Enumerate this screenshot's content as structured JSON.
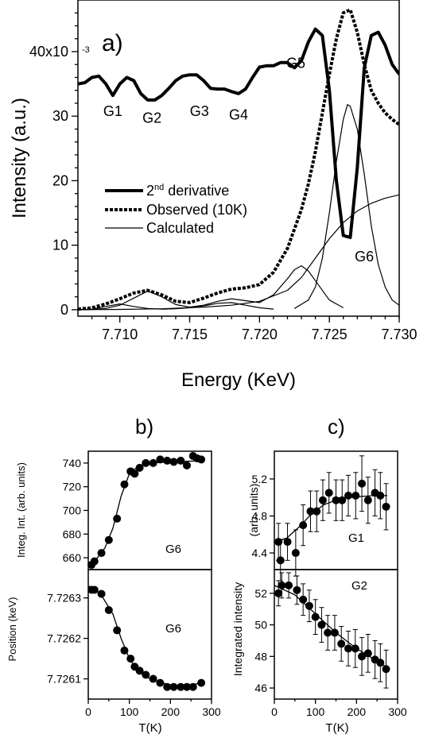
{
  "chart_data": [
    {
      "id": "a",
      "type": "line",
      "panel_label": "a)",
      "xlabel": "Energy (KeV)",
      "ylabel": "Intensity (a.u.)",
      "xlim": [
        7.707,
        7.73
      ],
      "ylim": [
        -1,
        48
      ],
      "x_ticks": [
        7.71,
        7.715,
        7.72,
        7.725,
        7.73
      ],
      "x_tick_labels": [
        "7.710",
        "7.715",
        "7.720",
        "7.725",
        "7.730"
      ],
      "y_ticks": [
        0,
        10,
        20,
        30,
        40
      ],
      "y_tick_labels": [
        "0",
        "10",
        "20",
        "30",
        "40x10"
      ],
      "y_exponent": "-3",
      "legend": {
        "placement": "center-left",
        "entries": [
          {
            "label_main": "2",
            "label_sup": "nd",
            "label_rest": " derivative",
            "style": "thick"
          },
          {
            "label_main": "Observed (10K)",
            "style": "dotted"
          },
          {
            "label_main": "Calculated",
            "style": "thin"
          }
        ]
      },
      "annotations": [
        {
          "text": "G1",
          "x": 7.7095,
          "y": 30
        },
        {
          "text": "G2",
          "x": 7.7123,
          "y": 29
        },
        {
          "text": "G3",
          "x": 7.7157,
          "y": 30
        },
        {
          "text": "G4",
          "x": 7.7185,
          "y": 29.5
        },
        {
          "text": "G5",
          "x": 7.7226,
          "y": 37.5
        },
        {
          "text": "G6",
          "x": 7.7275,
          "y": 7.5
        }
      ],
      "series": [
        {
          "style": "thick",
          "x": [
            7.707,
            7.7075,
            7.708,
            7.7085,
            7.709,
            7.7095,
            7.71,
            7.7105,
            7.711,
            7.7115,
            7.712,
            7.7125,
            7.713,
            7.7135,
            7.714,
            7.7145,
            7.715,
            7.7155,
            7.716,
            7.7165,
            7.717,
            7.7175,
            7.718,
            7.7185,
            7.719,
            7.7195,
            7.72,
            7.7205,
            7.721,
            7.7215,
            7.722,
            7.7225,
            7.723,
            7.7235,
            7.724,
            7.7245,
            7.725,
            7.7255,
            7.726,
            7.7265,
            7.727,
            7.7275,
            7.728,
            7.7285,
            7.729,
            7.7295,
            7.73
          ],
          "y": [
            35,
            35.2,
            36,
            36.2,
            35,
            33.2,
            35,
            36,
            35.5,
            33.5,
            32.5,
            32.5,
            33.2,
            34.3,
            35.5,
            36.2,
            36.4,
            36.4,
            35.5,
            34.3,
            34.2,
            34.2,
            33.8,
            33.5,
            34.2,
            36,
            37.6,
            37.8,
            37.8,
            38.3,
            38.3,
            37.5,
            38.6,
            41.5,
            43.5,
            42.5,
            34,
            20,
            11.5,
            11.2,
            22,
            37.5,
            42.5,
            43,
            41,
            38,
            36.5
          ]
        },
        {
          "style": "dotted",
          "x": [
            7.707,
            7.708,
            7.709,
            7.71,
            7.711,
            7.712,
            7.713,
            7.714,
            7.715,
            7.716,
            7.717,
            7.718,
            7.719,
            7.72,
            7.721,
            7.722,
            7.723,
            7.7235,
            7.724,
            7.7245,
            7.725,
            7.7255,
            7.726,
            7.7265,
            7.727,
            7.7275,
            7.728,
            7.7285,
            7.729,
            7.7295,
            7.73
          ],
          "y": [
            0.1,
            0.3,
            0.9,
            1.7,
            2.6,
            3.0,
            2.3,
            1.3,
            1.1,
            1.8,
            2.6,
            3.2,
            3.4,
            3.9,
            5.8,
            9.5,
            15.5,
            19.5,
            24.5,
            30.5,
            36.5,
            42,
            46,
            46.5,
            43,
            38,
            34,
            32,
            30.5,
            29.5,
            28.7
          ]
        },
        {
          "style": "thin",
          "x": [
            7.707,
            7.708,
            7.709,
            7.71,
            7.711,
            7.712,
            7.713,
            7.714,
            7.715,
            7.716,
            7.717,
            7.718,
            7.719,
            7.72,
            7.721,
            7.722,
            7.7225,
            7.723,
            7.7235,
            7.724,
            7.725,
            7.726
          ],
          "y": [
            0,
            0.05,
            0.2,
            0.7,
            1.8,
            2.9,
            2.0,
            0.8,
            0.4,
            0.7,
            1.3,
            1.7,
            1.4,
            1.1,
            2.3,
            4.8,
            6.2,
            6.8,
            6.0,
            4.5,
            1.5,
            0.3
          ]
        },
        {
          "style": "thin",
          "x": [
            7.707,
            7.708,
            7.709,
            7.71,
            7.711,
            7.712,
            7.713,
            7.714,
            7.715,
            7.716,
            7.717,
            7.718,
            7.719,
            7.72,
            7.721
          ],
          "y": [
            0,
            0.1,
            0.5,
            0.9,
            0.5,
            0.2,
            0.1,
            0.15,
            0.3,
            0.6,
            1.0,
            1.1,
            0.7,
            0.3,
            0.1
          ]
        },
        {
          "style": "thin",
          "x": [
            7.707,
            7.71,
            7.713,
            7.716,
            7.718,
            7.72,
            7.722,
            7.723,
            7.724,
            7.725,
            7.726,
            7.727,
            7.728,
            7.729,
            7.73
          ],
          "y": [
            0,
            0.05,
            0.15,
            0.4,
            0.7,
            1.3,
            3,
            5,
            8,
            11,
            13.5,
            15.3,
            16.5,
            17.3,
            17.8
          ]
        },
        {
          "style": "thin",
          "x": [
            7.7225,
            7.7235,
            7.724,
            7.7245,
            7.725,
            7.7255,
            7.726,
            7.7263,
            7.7265,
            7.727,
            7.7275,
            7.728,
            7.7285,
            7.729,
            7.7295,
            7.73
          ],
          "y": [
            0.2,
            1.5,
            3.5,
            8,
            15,
            23,
            29.5,
            31.8,
            31.5,
            28,
            21,
            13,
            7,
            3.5,
            1.5,
            0.7
          ]
        }
      ]
    },
    {
      "id": "b-top",
      "type": "scatter",
      "panel_label": "b)",
      "ylabel": "Integ. Int. (arb. units)",
      "annotation": "G6",
      "xlim": [
        0,
        300
      ],
      "ylim": [
        650,
        750
      ],
      "y_ticks": [
        660,
        680,
        700,
        720,
        740
      ],
      "y_tick_labels": [
        "660",
        "680",
        "700",
        "720",
        "740"
      ],
      "points_x": [
        8,
        15,
        32,
        50,
        70,
        88,
        103,
        113,
        125,
        140,
        158,
        175,
        192,
        208,
        225,
        240,
        255,
        265,
        275
      ],
      "points_y": [
        654,
        657,
        664,
        675,
        693,
        722,
        733,
        731,
        736,
        740,
        740,
        743,
        742,
        741,
        742,
        738,
        746,
        744,
        743
      ],
      "fit_x": [
        0,
        20,
        40,
        60,
        80,
        100,
        120,
        150,
        200,
        280
      ],
      "fit_y": [
        654,
        659,
        668,
        685,
        712,
        731,
        737,
        740,
        741,
        742
      ]
    },
    {
      "id": "b-bottom",
      "type": "scatter",
      "ylabel": "Position (keV)",
      "xlabel": "T(K)",
      "annotation": "G6",
      "xlim": [
        0,
        300
      ],
      "ylim": [
        7.72605,
        7.72637
      ],
      "y_ticks": [
        7.7261,
        7.7262,
        7.7263
      ],
      "y_tick_labels": [
        "7.7261",
        "7.7262",
        "7.7263"
      ],
      "x_ticks": [
        0,
        100,
        200,
        300
      ],
      "x_tick_labels": [
        "0",
        "100",
        "200",
        "300"
      ],
      "points_x": [
        8,
        15,
        32,
        50,
        70,
        88,
        103,
        113,
        125,
        140,
        158,
        175,
        192,
        208,
        225,
        240,
        255,
        275
      ],
      "points_y": [
        7.72632,
        7.72632,
        7.72631,
        7.72627,
        7.72622,
        7.72617,
        7.72615,
        7.72613,
        7.72612,
        7.72611,
        7.7261,
        7.72609,
        7.72608,
        7.72608,
        7.72608,
        7.72608,
        7.72608,
        7.72609
      ],
      "fit_x": [
        0,
        30,
        60,
        80,
        100,
        120,
        150,
        180,
        220,
        280
      ],
      "fit_y": [
        7.72633,
        7.72631,
        7.72626,
        7.7262,
        7.72615,
        7.72612,
        7.7261,
        7.72609,
        7.72608,
        7.72609
      ]
    },
    {
      "id": "c-top",
      "type": "scatter",
      "panel_label": "c)",
      "ylabel": "(arb. units)",
      "annotation": "G1",
      "xlim": [
        0,
        300
      ],
      "ylim": [
        4.22,
        5.5
      ],
      "y_ticks": [
        4.4,
        4.8,
        5.2
      ],
      "y_tick_labels": [
        "4.4",
        "4.8",
        "5.2"
      ],
      "points_x": [
        10,
        15,
        32,
        52,
        70,
        88,
        103,
        118,
        133,
        150,
        165,
        180,
        198,
        213,
        228,
        245,
        258,
        272
      ],
      "points_y": [
        4.52,
        4.32,
        4.52,
        4.4,
        4.7,
        4.85,
        4.85,
        4.97,
        5.05,
        4.97,
        4.97,
        5.02,
        5.02,
        5.15,
        4.97,
        5.05,
        5.02,
        4.9
      ],
      "errors": [
        0.2,
        0.22,
        0.2,
        0.25,
        0.22,
        0.22,
        0.22,
        0.22,
        0.22,
        0.22,
        0.22,
        0.22,
        0.25,
        0.3,
        0.25,
        0.25,
        0.25,
        0.25
      ],
      "fit_x": [
        0,
        30,
        60,
        90,
        120,
        150,
        180,
        210,
        240,
        275
      ],
      "fit_y": [
        4.52,
        4.56,
        4.68,
        4.82,
        4.92,
        4.97,
        5.0,
        5.01,
        5.02,
        5.02
      ]
    },
    {
      "id": "c-bottom",
      "type": "scatter",
      "ylabel": "Integrated intensity",
      "xlabel": "T(K)",
      "annotation": "G2",
      "xlim": [
        0,
        300
      ],
      "ylim": [
        45.3,
        53.5
      ],
      "y_ticks": [
        46,
        48,
        50,
        52
      ],
      "y_tick_labels": [
        "46",
        "48",
        "50",
        "52"
      ],
      "x_ticks": [
        0,
        100,
        200,
        300
      ],
      "x_tick_labels": [
        "0",
        "100",
        "200",
        "300"
      ],
      "points_x": [
        10,
        18,
        35,
        55,
        70,
        85,
        100,
        115,
        130,
        147,
        163,
        180,
        197,
        213,
        228,
        245,
        258,
        272
      ],
      "points_y": [
        52.0,
        52.5,
        52.5,
        52.2,
        51.6,
        51.2,
        50.5,
        50.0,
        49.5,
        49.5,
        48.8,
        48.5,
        48.5,
        48.0,
        48.2,
        47.8,
        47.6,
        47.2
      ],
      "errors": [
        0.8,
        0.8,
        0.8,
        0.9,
        1.0,
        1.0,
        1.1,
        1.1,
        1.1,
        1.1,
        1.1,
        1.1,
        1.2,
        1.2,
        1.2,
        1.2,
        1.2,
        1.2
      ],
      "fit_x": [
        0,
        50,
        100,
        150,
        200,
        275
      ],
      "fit_y": [
        52.5,
        51.9,
        50.7,
        49.5,
        48.5,
        47.3
      ]
    }
  ]
}
